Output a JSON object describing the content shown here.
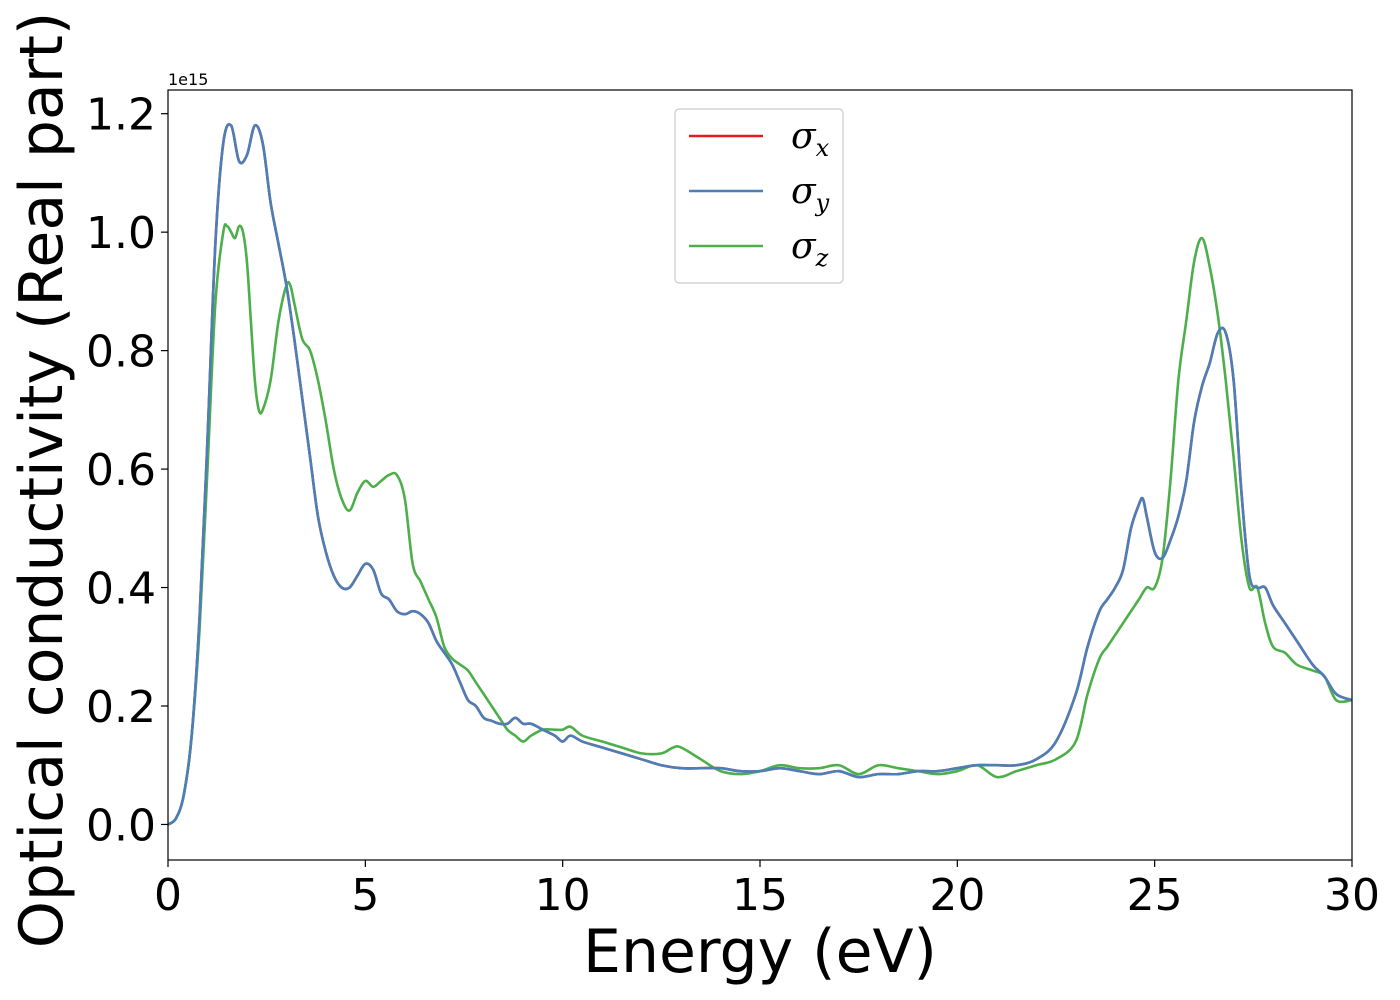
{
  "chart_data": {
    "type": "line",
    "title": "",
    "xlabel": "Energy (eV)",
    "ylabel": "Optical conductivity (Real part)",
    "y_offset_text": "1e15",
    "y_scale_factor": 1000000000000000.0,
    "xlim": [
      0,
      30
    ],
    "ylim": [
      -0.06,
      1.24
    ],
    "xticks": [
      0,
      5,
      10,
      15,
      20,
      25,
      30
    ],
    "yticks": [
      0.0,
      0.2,
      0.4,
      0.6,
      0.8,
      1.0,
      1.2
    ],
    "xtick_labels": [
      "0",
      "5",
      "10",
      "15",
      "20",
      "25",
      "30"
    ],
    "ytick_labels": [
      "0.0",
      "0.2",
      "0.4",
      "0.6",
      "0.8",
      "1.0",
      "1.2"
    ],
    "grid": false,
    "legend_position": "upper-center",
    "series": [
      {
        "name": "σx",
        "base": "σ",
        "sub": "x",
        "color": "#e41a1c",
        "x": [
          0,
          0.2,
          0.4,
          0.6,
          0.8,
          1.0,
          1.2,
          1.4,
          1.6,
          1.8,
          2.0,
          2.2,
          2.4,
          2.6,
          2.8,
          3.0,
          3.2,
          3.4,
          3.6,
          3.8,
          4.0,
          4.2,
          4.4,
          4.6,
          4.8,
          5.0,
          5.2,
          5.4,
          5.6,
          5.8,
          6.0,
          6.2,
          6.4,
          6.6,
          6.8,
          7.0,
          7.2,
          7.4,
          7.6,
          7.8,
          8.0,
          8.2,
          8.4,
          8.6,
          8.8,
          9.0,
          9.2,
          9.5,
          9.8,
          10.0,
          10.2,
          10.5,
          11.0,
          11.5,
          12.0,
          12.5,
          13.0,
          13.5,
          14.0,
          14.5,
          15.0,
          15.5,
          16.0,
          16.5,
          17.0,
          17.5,
          18.0,
          18.5,
          19.0,
          19.5,
          20.0,
          20.5,
          21.0,
          21.5,
          22.0,
          22.5,
          23.0,
          23.3,
          23.6,
          23.8,
          24.0,
          24.2,
          24.4,
          24.6,
          24.7,
          24.8,
          25.0,
          25.2,
          25.4,
          25.6,
          25.8,
          26.0,
          26.2,
          26.4,
          26.6,
          26.8,
          27.0,
          27.2,
          27.4,
          27.6,
          27.8,
          28.0,
          28.3,
          28.6,
          29.0,
          29.3,
          29.6,
          30.0
        ],
        "y": [
          0.0,
          0.01,
          0.05,
          0.15,
          0.35,
          0.65,
          0.98,
          1.15,
          1.18,
          1.12,
          1.13,
          1.18,
          1.15,
          1.05,
          0.98,
          0.91,
          0.82,
          0.72,
          0.62,
          0.52,
          0.46,
          0.42,
          0.4,
          0.4,
          0.42,
          0.44,
          0.43,
          0.39,
          0.38,
          0.36,
          0.355,
          0.36,
          0.355,
          0.34,
          0.31,
          0.29,
          0.27,
          0.24,
          0.21,
          0.2,
          0.18,
          0.175,
          0.17,
          0.17,
          0.18,
          0.17,
          0.17,
          0.16,
          0.15,
          0.14,
          0.15,
          0.14,
          0.13,
          0.12,
          0.11,
          0.1,
          0.095,
          0.095,
          0.095,
          0.09,
          0.09,
          0.095,
          0.09,
          0.085,
          0.09,
          0.08,
          0.085,
          0.085,
          0.09,
          0.09,
          0.095,
          0.1,
          0.1,
          0.1,
          0.11,
          0.14,
          0.22,
          0.3,
          0.36,
          0.38,
          0.4,
          0.43,
          0.5,
          0.54,
          0.55,
          0.52,
          0.46,
          0.45,
          0.48,
          0.52,
          0.58,
          0.68,
          0.74,
          0.78,
          0.83,
          0.83,
          0.75,
          0.56,
          0.42,
          0.4,
          0.4,
          0.37,
          0.34,
          0.31,
          0.27,
          0.25,
          0.22,
          0.21
        ]
      },
      {
        "name": "σy",
        "base": "σ",
        "sub": "y",
        "color": "#4a7fb8",
        "x": [
          0,
          0.2,
          0.4,
          0.6,
          0.8,
          1.0,
          1.2,
          1.4,
          1.6,
          1.8,
          2.0,
          2.2,
          2.4,
          2.6,
          2.8,
          3.0,
          3.2,
          3.4,
          3.6,
          3.8,
          4.0,
          4.2,
          4.4,
          4.6,
          4.8,
          5.0,
          5.2,
          5.4,
          5.6,
          5.8,
          6.0,
          6.2,
          6.4,
          6.6,
          6.8,
          7.0,
          7.2,
          7.4,
          7.6,
          7.8,
          8.0,
          8.2,
          8.4,
          8.6,
          8.8,
          9.0,
          9.2,
          9.5,
          9.8,
          10.0,
          10.2,
          10.5,
          11.0,
          11.5,
          12.0,
          12.5,
          13.0,
          13.5,
          14.0,
          14.5,
          15.0,
          15.5,
          16.0,
          16.5,
          17.0,
          17.5,
          18.0,
          18.5,
          19.0,
          19.5,
          20.0,
          20.5,
          21.0,
          21.5,
          22.0,
          22.5,
          23.0,
          23.3,
          23.6,
          23.8,
          24.0,
          24.2,
          24.4,
          24.6,
          24.7,
          24.8,
          25.0,
          25.2,
          25.4,
          25.6,
          25.8,
          26.0,
          26.2,
          26.4,
          26.6,
          26.8,
          27.0,
          27.2,
          27.4,
          27.6,
          27.8,
          28.0,
          28.3,
          28.6,
          29.0,
          29.3,
          29.6,
          30.0
        ],
        "y": [
          0.0,
          0.01,
          0.05,
          0.15,
          0.35,
          0.65,
          0.98,
          1.15,
          1.18,
          1.12,
          1.13,
          1.18,
          1.15,
          1.05,
          0.98,
          0.91,
          0.82,
          0.72,
          0.62,
          0.52,
          0.46,
          0.42,
          0.4,
          0.4,
          0.42,
          0.44,
          0.43,
          0.39,
          0.38,
          0.36,
          0.355,
          0.36,
          0.355,
          0.34,
          0.31,
          0.29,
          0.27,
          0.24,
          0.21,
          0.2,
          0.18,
          0.175,
          0.17,
          0.17,
          0.18,
          0.17,
          0.17,
          0.16,
          0.15,
          0.14,
          0.15,
          0.14,
          0.13,
          0.12,
          0.11,
          0.1,
          0.095,
          0.095,
          0.095,
          0.09,
          0.09,
          0.095,
          0.09,
          0.085,
          0.09,
          0.08,
          0.085,
          0.085,
          0.09,
          0.09,
          0.095,
          0.1,
          0.1,
          0.1,
          0.11,
          0.14,
          0.22,
          0.3,
          0.36,
          0.38,
          0.4,
          0.43,
          0.5,
          0.54,
          0.55,
          0.52,
          0.46,
          0.45,
          0.48,
          0.52,
          0.58,
          0.68,
          0.74,
          0.78,
          0.83,
          0.83,
          0.75,
          0.56,
          0.42,
          0.4,
          0.4,
          0.37,
          0.34,
          0.31,
          0.27,
          0.25,
          0.22,
          0.21
        ]
      },
      {
        "name": "σz",
        "base": "σ",
        "sub": "z",
        "color": "#4daf4a",
        "x": [
          0,
          0.2,
          0.4,
          0.6,
          0.8,
          1.0,
          1.2,
          1.4,
          1.5,
          1.6,
          1.7,
          1.8,
          1.9,
          2.0,
          2.1,
          2.2,
          2.3,
          2.4,
          2.6,
          2.8,
          3.0,
          3.1,
          3.2,
          3.4,
          3.6,
          3.8,
          4.0,
          4.2,
          4.4,
          4.6,
          4.8,
          5.0,
          5.2,
          5.4,
          5.6,
          5.8,
          6.0,
          6.2,
          6.4,
          6.6,
          6.8,
          7.0,
          7.2,
          7.4,
          7.6,
          7.8,
          8.0,
          8.2,
          8.4,
          8.6,
          8.8,
          9.0,
          9.2,
          9.5,
          9.8,
          10.0,
          10.2,
          10.5,
          11.0,
          11.5,
          12.0,
          12.5,
          12.8,
          13.0,
          13.5,
          14.0,
          14.5,
          15.0,
          15.5,
          16.0,
          16.5,
          17.0,
          17.5,
          18.0,
          18.5,
          19.0,
          19.5,
          20.0,
          20.5,
          21.0,
          21.5,
          22.0,
          22.5,
          23.0,
          23.3,
          23.6,
          23.8,
          24.0,
          24.2,
          24.4,
          24.6,
          24.8,
          25.0,
          25.2,
          25.4,
          25.6,
          25.8,
          26.0,
          26.2,
          26.4,
          26.6,
          26.8,
          27.0,
          27.2,
          27.4,
          27.6,
          27.8,
          28.0,
          28.3,
          28.6,
          29.0,
          29.3,
          29.6,
          30.0
        ],
        "y": [
          0.0,
          0.01,
          0.05,
          0.15,
          0.33,
          0.6,
          0.88,
          1.0,
          1.01,
          1.0,
          0.99,
          1.01,
          1.0,
          0.95,
          0.85,
          0.75,
          0.7,
          0.7,
          0.75,
          0.85,
          0.91,
          0.91,
          0.88,
          0.82,
          0.8,
          0.75,
          0.68,
          0.6,
          0.55,
          0.53,
          0.56,
          0.58,
          0.57,
          0.58,
          0.59,
          0.59,
          0.55,
          0.44,
          0.41,
          0.38,
          0.35,
          0.3,
          0.28,
          0.27,
          0.26,
          0.24,
          0.22,
          0.2,
          0.18,
          0.16,
          0.15,
          0.14,
          0.15,
          0.16,
          0.16,
          0.16,
          0.165,
          0.15,
          0.14,
          0.13,
          0.12,
          0.12,
          0.13,
          0.13,
          0.11,
          0.09,
          0.085,
          0.09,
          0.1,
          0.095,
          0.095,
          0.1,
          0.085,
          0.1,
          0.095,
          0.09,
          0.085,
          0.09,
          0.1,
          0.08,
          0.09,
          0.1,
          0.11,
          0.14,
          0.22,
          0.28,
          0.3,
          0.32,
          0.34,
          0.36,
          0.38,
          0.4,
          0.4,
          0.45,
          0.58,
          0.75,
          0.85,
          0.95,
          0.99,
          0.94,
          0.86,
          0.75,
          0.62,
          0.48,
          0.4,
          0.4,
          0.34,
          0.3,
          0.29,
          0.27,
          0.26,
          0.25,
          0.21,
          0.21
        ]
      }
    ]
  }
}
